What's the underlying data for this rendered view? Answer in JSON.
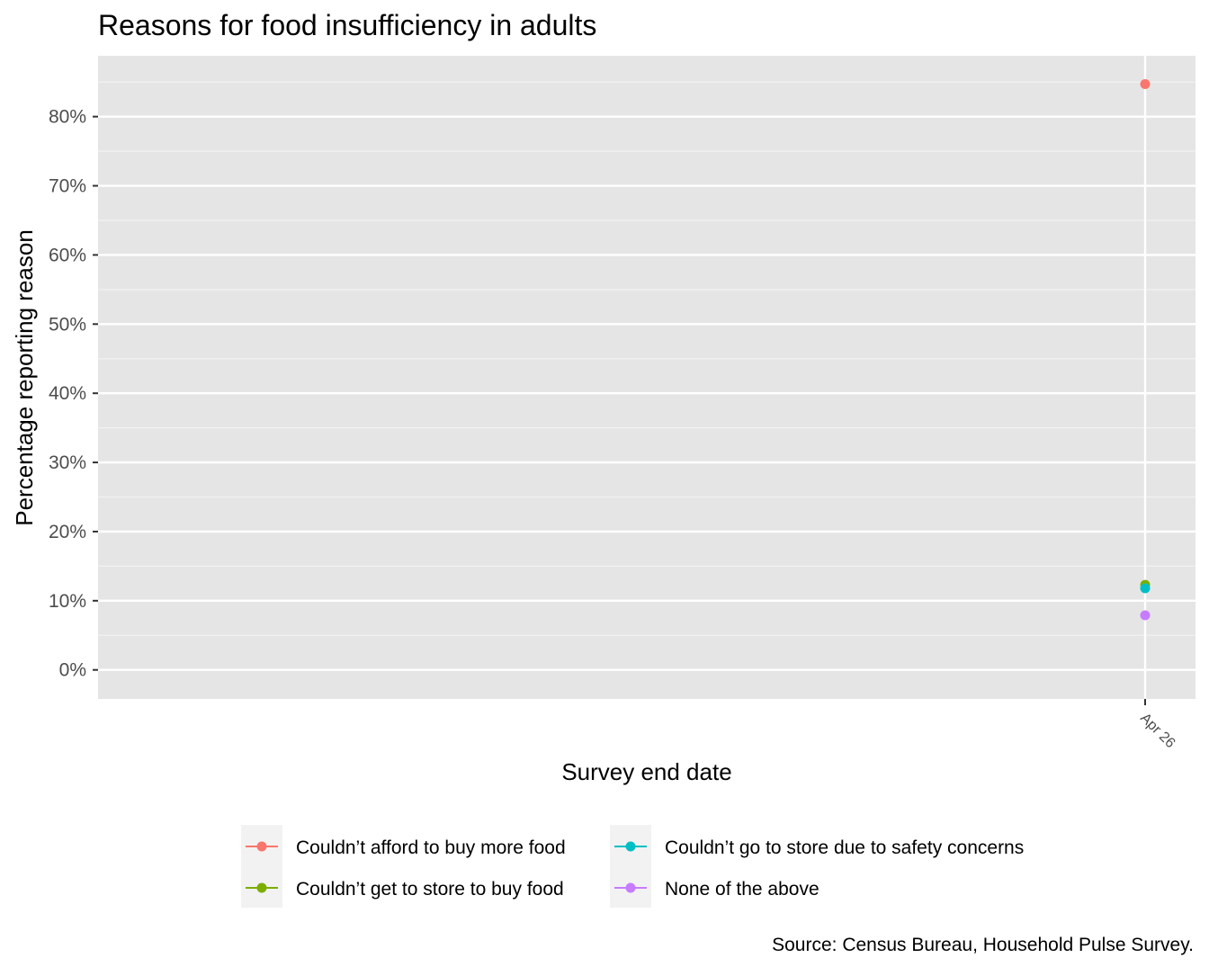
{
  "chart_data": {
    "type": "scatter",
    "title": "Reasons for food insufficiency in adults",
    "xlabel": "Survey end date",
    "ylabel": "Percentage reporting reason",
    "caption": "Source: Census Bureau, Household Pulse Survey.",
    "x_ticks": [
      "Apr 26"
    ],
    "y_ticks": [
      "0%",
      "10%",
      "20%",
      "30%",
      "40%",
      "50%",
      "60%",
      "70%",
      "80%"
    ],
    "y_tick_values": [
      0,
      10,
      20,
      30,
      40,
      50,
      60,
      70,
      80
    ],
    "ylim": [
      -4.2,
      88.8
    ],
    "grid": true,
    "legend_position": "bottom",
    "series": [
      {
        "name": "Couldn’t afford to buy more food",
        "color": "#F8766D",
        "x": [
          "Apr 26"
        ],
        "values": [
          84.7
        ]
      },
      {
        "name": "Couldn’t get to store to buy food",
        "color": "#7CAE00",
        "x": [
          "Apr 26"
        ],
        "values": [
          12.3
        ]
      },
      {
        "name": "Couldn’t go to store due to safety concerns",
        "color": "#00BFC4",
        "x": [
          "Apr 26"
        ],
        "values": [
          11.8
        ]
      },
      {
        "name": "None of the above",
        "color": "#C77CFF",
        "x": [
          "Apr 26"
        ],
        "values": [
          7.9
        ]
      }
    ]
  }
}
